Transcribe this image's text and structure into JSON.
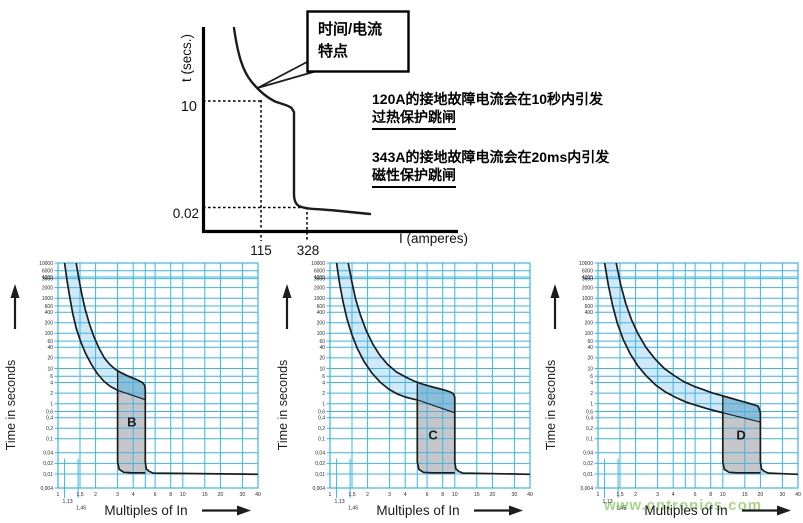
{
  "top_diagram": {
    "y_axis_label": "t (secs.)",
    "x_axis_label": "I (amperes)",
    "y_tick_thermal": "10",
    "y_tick_magnetic": "0.02",
    "x_tick_thermal": "115",
    "x_tick_magnetic": "328",
    "callout": {
      "line1": "时间/电流",
      "line2": "特点"
    },
    "note1": {
      "line1": "120A的接地故障电流会在10秒内引发",
      "line2": "过热保护跳闸"
    },
    "note2": {
      "line1": "343A的接地故障电流会在20ms内引发",
      "line2": "磁性保护跳闸"
    }
  },
  "watermark": "www.cntronics.com",
  "colors": {
    "grid": "#3cb4e6",
    "band_fill": "#cfe9f8",
    "overlap_fill": "#8cbcd6",
    "gray_fill": "#c6c6c8",
    "curve_stroke": "#1c1c1c",
    "watermark_green": "#7ec04b"
  },
  "axes": {
    "xlabel": "Multiples of In",
    "ylabel": "Time in seconds",
    "x_range": [
      1,
      40
    ],
    "y_range": [
      0.004,
      10000
    ],
    "x_log": true,
    "y_log": true,
    "grid": true,
    "x_ticks": [
      {
        "v": 1,
        "l": "1"
      },
      {
        "v": 1.13,
        "l": "1,13"
      },
      {
        "v": 1.45,
        "l": "1,45"
      },
      {
        "v": 1.5,
        "l": "1,5"
      },
      {
        "v": 2,
        "l": "2"
      },
      {
        "v": 3,
        "l": "3"
      },
      {
        "v": 4,
        "l": "4"
      },
      {
        "v": 6,
        "l": "6"
      },
      {
        "v": 8,
        "l": "8"
      },
      {
        "v": 10,
        "l": "10"
      },
      {
        "v": 15,
        "l": "15"
      },
      {
        "v": 20,
        "l": "20"
      },
      {
        "v": 30,
        "l": "30"
      },
      {
        "v": 40,
        "l": "40"
      }
    ],
    "x_grid": [
      1,
      1.5,
      2,
      3,
      4,
      5,
      6,
      8,
      10,
      15,
      20,
      30,
      40
    ],
    "y_ticks": [
      {
        "v": 10000,
        "l": "10000"
      },
      {
        "v": 6000,
        "l": "6000"
      },
      {
        "v": 4000,
        "l": "4000"
      },
      {
        "v": 3600,
        "l": "3600"
      },
      {
        "v": 2000,
        "l": "2000"
      },
      {
        "v": 1000,
        "l": "1000"
      },
      {
        "v": 600,
        "l": "600"
      },
      {
        "v": 400,
        "l": "400"
      },
      {
        "v": 200,
        "l": "200"
      },
      {
        "v": 100,
        "l": "100"
      },
      {
        "v": 60,
        "l": "60"
      },
      {
        "v": 40,
        "l": "40"
      },
      {
        "v": 20,
        "l": "20"
      },
      {
        "v": 10,
        "l": "10"
      },
      {
        "v": 6,
        "l": "6"
      },
      {
        "v": 4,
        "l": "4"
      },
      {
        "v": 2,
        "l": "2"
      },
      {
        "v": 1,
        "l": "1"
      },
      {
        "v": 0.6,
        "l": "0,6"
      },
      {
        "v": 0.4,
        "l": "0,4"
      },
      {
        "v": 0.2,
        "l": "0,2"
      },
      {
        "v": 0.1,
        "l": "0,1"
      },
      {
        "v": 0.04,
        "l": "0,04"
      },
      {
        "v": 0.02,
        "l": "0,02"
      },
      {
        "v": 0.01,
        "l": "0,01"
      },
      {
        "v": 0.004,
        "l": "0,004"
      }
    ]
  },
  "chart_data": [
    {
      "type": "area",
      "letter": "B",
      "instantaneous_band_multiples": [
        3,
        5
      ],
      "letter_pos": [
        3.9,
        0.3
      ],
      "upper_at_band_start": 8.9,
      "vertical_start_time": 2.6,
      "upper_curve": [
        [
          1.4,
          10000
        ],
        [
          1.47,
          3500
        ],
        [
          1.55,
          1300
        ],
        [
          1.65,
          480
        ],
        [
          1.78,
          190
        ],
        [
          1.94,
          80
        ],
        [
          2.13,
          38
        ],
        [
          2.35,
          20
        ],
        [
          2.6,
          13
        ],
        [
          2.9,
          9.3
        ],
        [
          3.2,
          7.6
        ],
        [
          3.6,
          6.2
        ],
        [
          4.0,
          5.3
        ],
        [
          4.4,
          4.6
        ],
        [
          4.75,
          4.0
        ],
        [
          4.95,
          3.3
        ],
        [
          5.0,
          2.6
        ]
      ],
      "lower_curve": [
        [
          1.13,
          10000
        ],
        [
          1.18,
          3200
        ],
        [
          1.24,
          1100
        ],
        [
          1.31,
          380
        ],
        [
          1.4,
          140
        ],
        [
          1.52,
          58
        ],
        [
          1.66,
          27
        ],
        [
          1.84,
          13.5
        ],
        [
          2.06,
          7.2
        ],
        [
          2.32,
          4.4
        ],
        [
          2.62,
          3.1
        ],
        [
          2.88,
          2.6
        ],
        [
          3.0,
          2.4
        ]
      ],
      "diagonal": [
        [
          3,
          2.4
        ],
        [
          5,
          1.3
        ]
      ]
    },
    {
      "type": "area",
      "letter": "C",
      "instantaneous_band_multiples": [
        5,
        10
      ],
      "letter_pos": [
        6.7,
        0.13
      ],
      "upper_at_band_start": 3.85,
      "vertical_start_time": 1.5,
      "upper_curve": [
        [
          1.4,
          10000
        ],
        [
          1.5,
          2800
        ],
        [
          1.61,
          900
        ],
        [
          1.76,
          320
        ],
        [
          1.95,
          120
        ],
        [
          2.2,
          50
        ],
        [
          2.5,
          24
        ],
        [
          2.9,
          13
        ],
        [
          3.4,
          8
        ],
        [
          4.0,
          5.8
        ],
        [
          4.7,
          4.4
        ],
        [
          5.5,
          3.6
        ],
        [
          6.4,
          3.1
        ],
        [
          7.4,
          2.7
        ],
        [
          8.4,
          2.4
        ],
        [
          9.2,
          2.15
        ],
        [
          9.75,
          1.9
        ],
        [
          10,
          1.5
        ]
      ],
      "lower_curve": [
        [
          1.13,
          10000
        ],
        [
          1.19,
          2800
        ],
        [
          1.27,
          800
        ],
        [
          1.37,
          250
        ],
        [
          1.5,
          90
        ],
        [
          1.66,
          36
        ],
        [
          1.88,
          15.5
        ],
        [
          2.16,
          7.5
        ],
        [
          2.52,
          4.1
        ],
        [
          2.95,
          2.6
        ],
        [
          3.45,
          1.9
        ],
        [
          4.0,
          1.55
        ],
        [
          4.6,
          1.37
        ],
        [
          5.0,
          1.28
        ]
      ],
      "diagonal": [
        [
          5,
          1.28
        ],
        [
          10,
          0.55
        ]
      ]
    },
    {
      "type": "area",
      "letter": "D",
      "instantaneous_band_multiples": [
        10,
        20
      ],
      "letter_pos": [
        14,
        0.13
      ],
      "upper_at_band_start": 1.68,
      "vertical_start_time": 0.55,
      "upper_curve": [
        [
          1.4,
          10000
        ],
        [
          1.52,
          2400
        ],
        [
          1.67,
          700
        ],
        [
          1.86,
          240
        ],
        [
          2.1,
          95
        ],
        [
          2.42,
          40
        ],
        [
          2.85,
          19
        ],
        [
          3.4,
          10
        ],
        [
          4.1,
          6.2
        ],
        [
          4.9,
          4.2
        ],
        [
          5.9,
          3.1
        ],
        [
          7.0,
          2.5
        ],
        [
          8.3,
          2.0
        ],
        [
          9.8,
          1.7
        ],
        [
          11.5,
          1.45
        ],
        [
          13.5,
          1.22
        ],
        [
          15.5,
          1.07
        ],
        [
          17.5,
          0.95
        ],
        [
          19.2,
          0.85
        ],
        [
          20,
          0.55
        ]
      ],
      "lower_curve": [
        [
          1.13,
          10000
        ],
        [
          1.21,
          2400
        ],
        [
          1.31,
          620
        ],
        [
          1.43,
          190
        ],
        [
          1.59,
          68
        ],
        [
          1.8,
          27
        ],
        [
          2.08,
          12
        ],
        [
          2.45,
          6
        ],
        [
          2.92,
          3.3
        ],
        [
          3.5,
          2.1
        ],
        [
          4.2,
          1.5
        ],
        [
          5.1,
          1.1
        ],
        [
          6.2,
          0.88
        ],
        [
          7.5,
          0.72
        ],
        [
          8.8,
          0.62
        ],
        [
          10,
          0.55
        ]
      ],
      "diagonal": [
        [
          10,
          0.55
        ],
        [
          20,
          0.3
        ]
      ]
    }
  ]
}
